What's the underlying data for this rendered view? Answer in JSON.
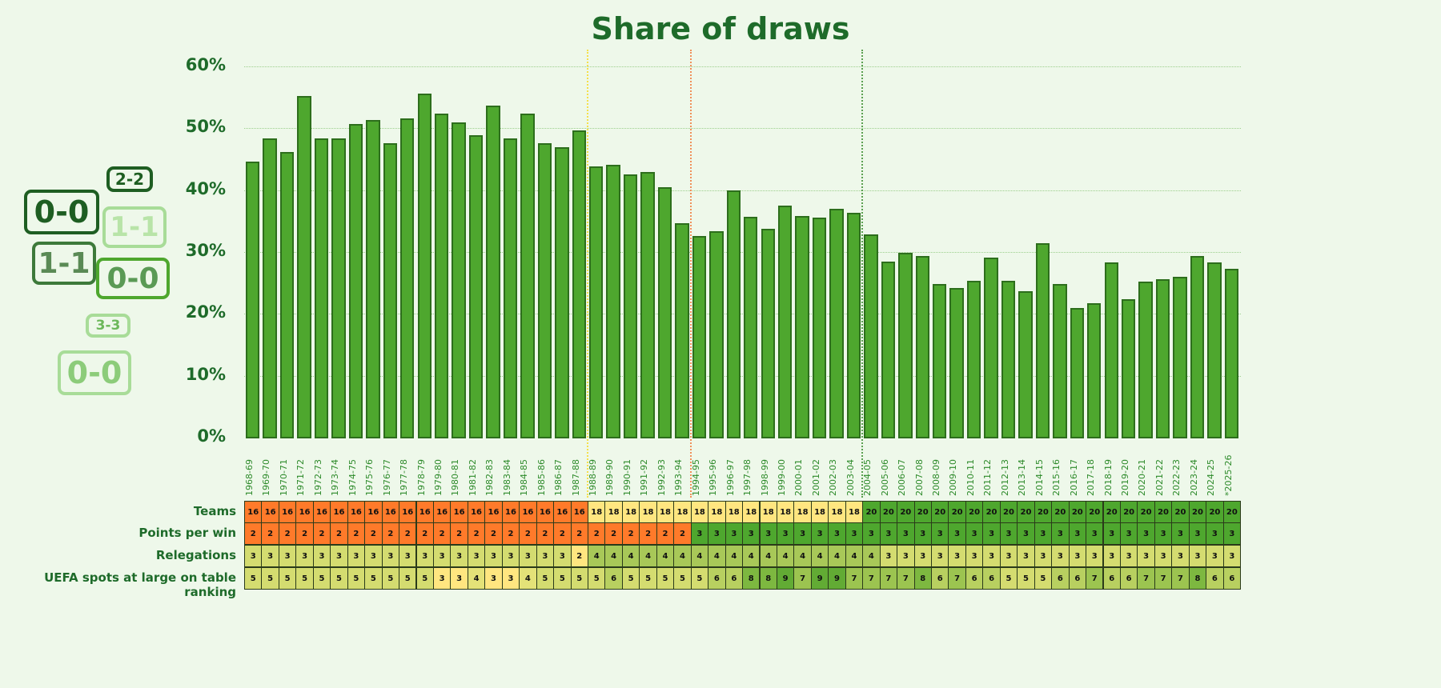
{
  "chart_data": {
    "type": "bar",
    "title": "Share of draws",
    "ylabel": "",
    "xlabel": "",
    "ylim": [
      0,
      60
    ],
    "yticks": [
      "0%",
      "10%",
      "20%",
      "30%",
      "40%",
      "50%",
      "60%"
    ],
    "categories": [
      "1968-69",
      "1969-70",
      "1970-71",
      "1971-72",
      "1972-73",
      "1973-74",
      "1974-75",
      "1975-76",
      "1976-77",
      "1977-78",
      "1978-79",
      "1979-80",
      "1980-81",
      "1981-82",
      "1982-83",
      "1983-84",
      "1984-85",
      "1985-86",
      "1986-87",
      "1987-88",
      "1988-89",
      "1989-90",
      "1990-91",
      "1991-92",
      "1992-93",
      "1993-94",
      "1994-95",
      "1995-96",
      "1996-97",
      "1997-98",
      "1998-99",
      "1999-00",
      "2000-01",
      "2001-02",
      "2002-03",
      "2003-04",
      "2004-05",
      "2005-06",
      "2006-07",
      "2007-08",
      "2008-09",
      "2009-10",
      "2010-11",
      "2011-12",
      "2012-13",
      "2013-14",
      "2014-15",
      "2015-16",
      "2016-17",
      "2017-18",
      "2018-19",
      "2019-20",
      "2020-21",
      "2021-22",
      "2022-23",
      "2023-24",
      "2024-25",
      "*2025-26"
    ],
    "values": [
      44.6,
      48.4,
      46.1,
      55.2,
      48.4,
      48.4,
      50.7,
      51.4,
      47.6,
      51.6,
      55.6,
      52.4,
      51.0,
      48.9,
      53.7,
      48.4,
      52.4,
      47.6,
      47.0,
      49.7,
      43.9,
      44.1,
      42.6,
      42.9,
      40.5,
      34.7,
      32.6,
      33.4,
      40.0,
      35.7,
      33.8,
      37.5,
      35.8,
      35.6,
      37.0,
      36.4,
      32.9,
      28.5,
      29.9,
      29.4,
      24.8,
      24.2,
      25.4,
      29.1,
      25.4,
      23.7,
      31.4,
      24.8,
      21.0,
      21.7,
      28.3,
      22.4,
      25.2,
      25.6,
      26.0,
      29.4,
      28.3,
      27.3
    ],
    "grid": true,
    "dividers": [
      {
        "after": "1987-88",
        "color": "#f5e04a"
      },
      {
        "after": "1993-94",
        "color": "#f0905a"
      },
      {
        "after": "2003-04",
        "color": "#5aa050"
      }
    ],
    "table": [
      {
        "label": "Teams",
        "values": [
          16,
          16,
          16,
          16,
          16,
          16,
          16,
          16,
          16,
          16,
          16,
          16,
          16,
          16,
          16,
          16,
          16,
          16,
          16,
          16,
          18,
          18,
          18,
          18,
          18,
          18,
          18,
          18,
          18,
          18,
          18,
          18,
          18,
          18,
          18,
          18,
          20,
          20,
          20,
          20,
          20,
          20,
          20,
          20,
          20,
          20,
          20,
          20,
          20,
          20,
          20,
          20,
          20,
          20,
          20,
          20,
          20,
          20
        ],
        "colors": {
          "16": "#ff7a2a",
          "18": "#ffe680",
          "20": "#4ea72e"
        }
      },
      {
        "label": "Points per win",
        "values": [
          2,
          2,
          2,
          2,
          2,
          2,
          2,
          2,
          2,
          2,
          2,
          2,
          2,
          2,
          2,
          2,
          2,
          2,
          2,
          2,
          2,
          2,
          2,
          2,
          2,
          2,
          3,
          3,
          3,
          3,
          3,
          3,
          3,
          3,
          3,
          3,
          3,
          3,
          3,
          3,
          3,
          3,
          3,
          3,
          3,
          3,
          3,
          3,
          3,
          3,
          3,
          3,
          3,
          3,
          3,
          3,
          3,
          3
        ],
        "colors": {
          "2": "#ff7a2a",
          "3": "#4ea72e"
        }
      },
      {
        "label": "Relegations",
        "values": [
          3,
          3,
          3,
          3,
          3,
          3,
          3,
          3,
          3,
          3,
          3,
          3,
          3,
          3,
          3,
          3,
          3,
          3,
          3,
          2,
          4,
          4,
          4,
          4,
          4,
          4,
          4,
          4,
          4,
          4,
          4,
          4,
          4,
          4,
          4,
          4,
          4,
          3,
          3,
          3,
          3,
          3,
          3,
          3,
          3,
          3,
          3,
          3,
          3,
          3,
          3,
          3,
          3,
          3,
          3,
          3,
          3,
          3
        ],
        "colors": {
          "2": "#ffe680",
          "3": "#d4dc70",
          "4": "#a8c858"
        }
      },
      {
        "label": "UEFA spots at large on table ranking",
        "values": [
          5,
          5,
          5,
          5,
          5,
          5,
          5,
          5,
          5,
          5,
          5,
          3,
          3,
          4,
          3,
          3,
          4,
          5,
          5,
          5,
          5,
          6,
          5,
          5,
          5,
          5,
          5,
          6,
          6,
          8,
          8,
          9,
          7,
          9,
          9,
          7,
          7,
          7,
          7,
          8,
          6,
          7,
          6,
          6,
          5,
          5,
          5,
          6,
          6,
          7,
          6,
          6,
          7,
          7,
          7,
          8,
          6,
          6
        ],
        "colors": {
          "3": "#ffe680",
          "4": "#e4e278",
          "5": "#d4dc70",
          "6": "#b8d060",
          "7": "#9cc450",
          "8": "#7db840",
          "9": "#62ab34"
        }
      }
    ]
  },
  "decor": [
    {
      "text": "2-2"
    },
    {
      "text": "0-0"
    },
    {
      "text": "1-1"
    },
    {
      "text": "1-1"
    },
    {
      "text": "0-0"
    },
    {
      "text": "3-3"
    },
    {
      "text": "0-0"
    }
  ],
  "colors": {
    "bar": "#4ea72e",
    "bar_border": "#2d6e1c",
    "text": "#1e6b2a"
  }
}
